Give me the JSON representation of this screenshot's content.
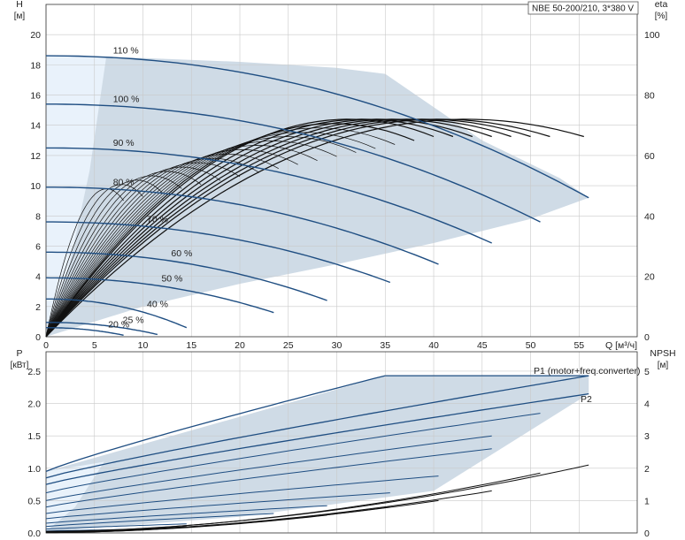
{
  "chart_data": {
    "type": "line",
    "title": "NBE 50-200/210, 3*380 V",
    "colors": {
      "curve": "#1f4e82",
      "envelope": "#cfdbe6",
      "envelope_light": "#e9f2fb",
      "eta_curve": "#111111",
      "grid": "#c9c9c9",
      "axis": "#333333"
    },
    "top": {
      "left_axis": {
        "label": "H",
        "unit": "[м]",
        "range": [
          0,
          22
        ],
        "ticks": [
          0,
          2,
          4,
          6,
          8,
          10,
          12,
          14,
          16,
          18,
          20
        ]
      },
      "right_axis": {
        "label": "eta",
        "unit": "[%]",
        "range": [
          0,
          110
        ],
        "ticks": [
          0,
          20,
          40,
          60,
          80,
          100
        ]
      },
      "x_axis": {
        "label": "Q [м³/ч]",
        "range": [
          0,
          61
        ],
        "ticks": [
          0,
          5,
          10,
          15,
          20,
          25,
          30,
          35,
          40,
          45,
          50,
          55
        ]
      },
      "envelope_upper": [
        [
          0,
          18.6
        ],
        [
          10,
          18.45
        ],
        [
          20,
          18.2
        ],
        [
          30,
          17.8
        ],
        [
          35,
          17.4
        ],
        [
          45,
          13.0
        ],
        [
          53,
          10.5
        ],
        [
          56,
          9.2
        ]
      ],
      "envelope_lower": [
        [
          0,
          0
        ],
        [
          10,
          2.0
        ],
        [
          20,
          3.5
        ],
        [
          30,
          4.8
        ],
        [
          40,
          6.2
        ],
        [
          50,
          7.8
        ],
        [
          56,
          9.2
        ]
      ],
      "envelope_light_edge": [
        [
          0,
          18.6
        ],
        [
          6.2,
          18.45
        ],
        [
          4.5,
          11.0
        ],
        [
          2.5,
          5.0
        ],
        [
          0,
          0
        ]
      ],
      "speed_curves": [
        {
          "label": "110 %",
          "label_q": 6,
          "h0": 18.6,
          "qmax": 56.0,
          "hend": 9.2
        },
        {
          "label": "100 %",
          "label_q": 6,
          "h0": 15.4,
          "qmax": 51.0,
          "hend": 7.6
        },
        {
          "label": "90 %",
          "label_q": 6,
          "h0": 12.5,
          "qmax": 46.0,
          "hend": 6.2
        },
        {
          "label": "80 %",
          "label_q": 6,
          "h0": 9.9,
          "qmax": 40.5,
          "hend": 4.8
        },
        {
          "label": "70 %",
          "label_q": 9.5,
          "h0": 7.6,
          "qmax": 35.5,
          "hend": 3.6
        },
        {
          "label": "60 %",
          "label_q": 12,
          "h0": 5.6,
          "qmax": 29.0,
          "hend": 2.4
        },
        {
          "label": "50 %",
          "label_q": 11,
          "h0": 3.9,
          "qmax": 23.5,
          "hend": 1.6
        },
        {
          "label": "40 %",
          "label_q": 9.5,
          "h0": 2.5,
          "qmax": 14.5,
          "hend": 0.6
        },
        {
          "label": "25 %",
          "label_q": 7,
          "h0": 0.95,
          "qmax": 11.5,
          "hend": 0.15
        },
        {
          "label": "20 %",
          "label_q": 5.5,
          "h0": 0.6,
          "qmax": 8.0,
          "hend": 0.1
        }
      ],
      "eta_curves_qmax": [
        8,
        10,
        12,
        14,
        16,
        18,
        20,
        22,
        24,
        26,
        28,
        30,
        32,
        34,
        36,
        38,
        40,
        42,
        44,
        46,
        48,
        50,
        52,
        55.5
      ],
      "eta_peak": 72
    },
    "bottom": {
      "left_axis": {
        "label": "P",
        "unit": "[кВт]",
        "range": [
          0,
          2.8
        ],
        "ticks": [
          0.0,
          0.5,
          1.0,
          1.5,
          2.0,
          2.5
        ],
        "tick_labels": [
          "0.0",
          "0.5",
          "1.0",
          "1.5",
          "2.0",
          "2.5"
        ]
      },
      "right_axis": {
        "label": "NPSH",
        "unit": "[м]",
        "range": [
          0,
          5.6
        ],
        "ticks": [
          0,
          1,
          2,
          3,
          4,
          5
        ]
      },
      "x_range": [
        0,
        61
      ],
      "envelope_upper": [
        [
          0,
          0.95
        ],
        [
          35,
          2.43
        ],
        [
          56,
          2.43
        ]
      ],
      "envelope_lower": [
        [
          0,
          0.02
        ],
        [
          20,
          0.25
        ],
        [
          40,
          0.65
        ],
        [
          56,
          2.15
        ]
      ],
      "p1_label": "P1 (motor+freq.converter)",
      "p2_label": "P2",
      "power_curves": [
        {
          "p0": 0.95,
          "qmax": 35,
          "pend": 2.43
        },
        {
          "p0": 0.85,
          "qmax": 56,
          "pend": 2.43
        },
        {
          "p0": 0.75,
          "qmax": 56,
          "pend": 2.15
        },
        {
          "p0": 0.62,
          "qmax": 51,
          "pend": 1.85
        },
        {
          "p0": 0.5,
          "qmax": 46,
          "pend": 1.5
        },
        {
          "p0": 0.4,
          "qmax": 46,
          "pend": 1.3
        },
        {
          "p0": 0.3,
          "qmax": 40.5,
          "pend": 0.88
        },
        {
          "p0": 0.22,
          "qmax": 35.5,
          "pend": 0.62
        },
        {
          "p0": 0.15,
          "qmax": 29,
          "pend": 0.42
        },
        {
          "p0": 0.1,
          "qmax": 23.5,
          "pend": 0.3
        },
        {
          "p0": 0.06,
          "qmax": 14.5,
          "pend": 0.14
        },
        {
          "p0": 0.03,
          "qmax": 11.5,
          "pend": 0.06
        }
      ],
      "npsh_curves": [
        {
          "n0": 0.05,
          "qmax": 56,
          "nend": 2.1
        },
        {
          "n0": 0.04,
          "qmax": 51,
          "nend": 1.85
        },
        {
          "n0": 0.03,
          "qmax": 46,
          "nend": 1.3
        },
        {
          "n0": 0.02,
          "qmax": 40.5,
          "nend": 1.0
        },
        {
          "n0": 0.02,
          "qmax": 35.5,
          "nend": 0.8
        },
        {
          "n0": 0.01,
          "qmax": 29,
          "nend": 0.55
        },
        {
          "n0": 0.01,
          "qmax": 23.5,
          "nend": 0.4
        },
        {
          "n0": 0.01,
          "qmax": 14.5,
          "nend": 0.2
        }
      ]
    }
  }
}
